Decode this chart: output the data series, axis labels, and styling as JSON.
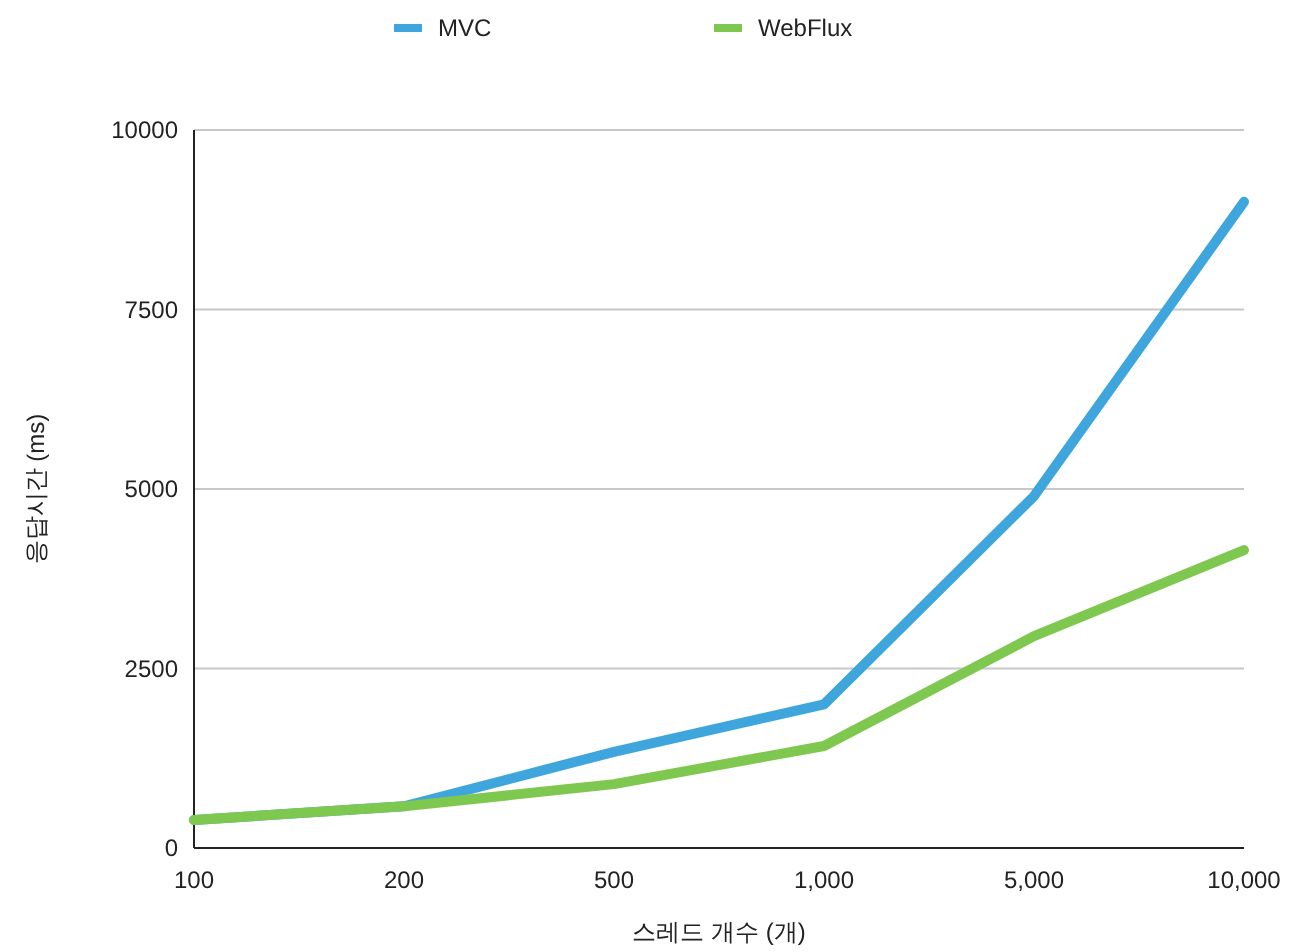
{
  "chart_data": {
    "type": "line",
    "xlabel": "스레드 개수 (개)",
    "ylabel": "응답시간 (ms)",
    "categories": [
      "100",
      "200",
      "500",
      "1,000",
      "5,000",
      "10,000"
    ],
    "series": [
      {
        "name": "MVC",
        "color": "#3fa6dd",
        "values": [
          390,
          580,
          1340,
          2000,
          4900,
          9000
        ]
      },
      {
        "name": "WebFlux",
        "color": "#7ec850",
        "values": [
          390,
          580,
          890,
          1420,
          2950,
          4150
        ]
      }
    ],
    "ylim": [
      0,
      10000
    ],
    "yticks": [
      0,
      2500,
      5000,
      7500,
      10000
    ],
    "grid": "y",
    "legend": "top",
    "marker": "none",
    "line_style": "solid"
  }
}
